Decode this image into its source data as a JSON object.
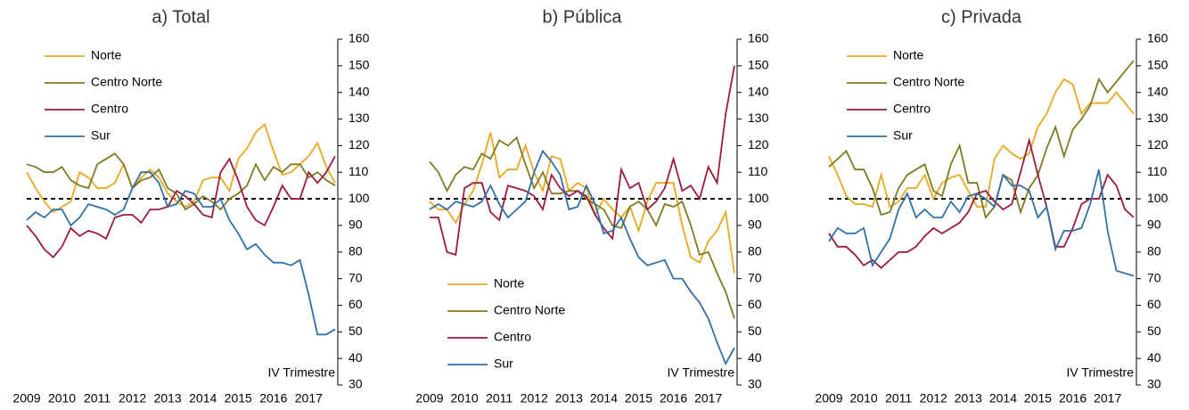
{
  "chart_data": [
    {
      "type": "line",
      "title": "a) Total",
      "categories": [
        "2009",
        null,
        null,
        null,
        "2010",
        null,
        null,
        null,
        "2011",
        null,
        null,
        null,
        "2012",
        null,
        null,
        null,
        "2013",
        null,
        null,
        null,
        "2014",
        null,
        null,
        null,
        "2015",
        null,
        null,
        null,
        "2016",
        null,
        null,
        null,
        "2017",
        null,
        null,
        null
      ],
      "series": [
        {
          "name": "Norte",
          "color": "#e8a820",
          "values": [
            110,
            104,
            99,
            95,
            97,
            99,
            110,
            108,
            104,
            104,
            106,
            113,
            104,
            108,
            111,
            108,
            102,
            99,
            97,
            99,
            107,
            108,
            108,
            103,
            115,
            119,
            125,
            128,
            118,
            109,
            110,
            113,
            116,
            121,
            112,
            106
          ]
        },
        {
          "name": "Centro Norte",
          "color": "#7f7a20",
          "values": [
            113,
            112,
            110,
            110,
            112,
            107,
            105,
            104,
            113,
            115,
            117,
            113,
            104,
            107,
            108,
            111,
            104,
            102,
            96,
            98,
            101,
            99,
            96,
            100,
            102,
            105,
            113,
            107,
            112,
            110,
            113,
            113,
            108,
            110,
            107,
            105
          ]
        },
        {
          "name": "Centro",
          "color": "#9b1b3d",
          "values": [
            90,
            86,
            81,
            78,
            82,
            89,
            86,
            88,
            87,
            85,
            93,
            94,
            94,
            91,
            96,
            96,
            97,
            103,
            101,
            98,
            94,
            93,
            110,
            115,
            107,
            97,
            92,
            90,
            97,
            105,
            100,
            100,
            110,
            106,
            110,
            116
          ]
        },
        {
          "name": "Sur",
          "color": "#3070a8",
          "values": [
            92,
            95,
            93,
            96,
            96,
            90,
            93,
            98,
            97,
            96,
            94,
            96,
            104,
            110,
            110,
            106,
            97,
            98,
            103,
            102,
            97,
            97,
            100,
            92,
            87,
            81,
            83,
            79,
            76,
            76,
            75,
            77,
            64,
            49,
            49,
            51
          ]
        }
      ],
      "ylim": [
        30,
        160
      ],
      "yticks": [
        30,
        40,
        50,
        60,
        70,
        80,
        90,
        100,
        110,
        120,
        130,
        140,
        150,
        160
      ],
      "legend": "upper left",
      "reference_line": 100,
      "annotation": "IV Trimestre"
    },
    {
      "type": "line",
      "title": "b) Pública",
      "categories": [
        "2009",
        null,
        null,
        null,
        "2010",
        null,
        null,
        null,
        "2011",
        null,
        null,
        null,
        "2012",
        null,
        null,
        null,
        "2013",
        null,
        null,
        null,
        "2014",
        null,
        null,
        null,
        "2015",
        null,
        null,
        null,
        "2016",
        null,
        null,
        null,
        "2017",
        null,
        null,
        null
      ],
      "series": [
        {
          "name": "Norte",
          "color": "#e8a820",
          "values": [
            99,
            96,
            96,
            91,
            98,
            103,
            113,
            125,
            108,
            111,
            111,
            120,
            110,
            103,
            116,
            115,
            103,
            106,
            104,
            94,
            100,
            96,
            93,
            97,
            88,
            99,
            106,
            106,
            106,
            90,
            78,
            76,
            84,
            88,
            95,
            72
          ]
        },
        {
          "name": "Centro Norte",
          "color": "#7f7a20",
          "values": [
            114,
            110,
            103,
            109,
            112,
            111,
            117,
            115,
            122,
            120,
            123,
            113,
            104,
            110,
            102,
            102,
            103,
            103,
            100,
            98,
            96,
            90,
            89,
            97,
            99,
            96,
            90,
            98,
            97,
            99,
            90,
            79,
            80,
            72,
            65,
            55
          ]
        },
        {
          "name": "Centro",
          "color": "#9b1b3d",
          "values": [
            93,
            93,
            80,
            79,
            104,
            106,
            106,
            95,
            92,
            105,
            104,
            103,
            101,
            96,
            109,
            104,
            101,
            103,
            101,
            94,
            89,
            85,
            111,
            104,
            106,
            96,
            99,
            104,
            115,
            103,
            105,
            100,
            112,
            106,
            132,
            150
          ]
        },
        {
          "name": "Sur",
          "color": "#3070a8",
          "values": [
            96,
            98,
            96,
            99,
            98,
            97,
            99,
            105,
            98,
            93,
            96,
            99,
            110,
            118,
            114,
            109,
            96,
            97,
            105,
            98,
            87,
            88,
            93,
            85,
            78,
            75,
            76,
            77,
            70,
            70,
            65,
            61,
            55,
            46,
            38,
            44
          ]
        }
      ],
      "ylim": [
        30,
        160
      ],
      "yticks": [
        30,
        40,
        50,
        60,
        70,
        80,
        90,
        100,
        110,
        120,
        130,
        140,
        150,
        160
      ],
      "legend": "lower left",
      "reference_line": 100,
      "annotation": "IV Trimestre"
    },
    {
      "type": "line",
      "title": "c) Privada",
      "categories": [
        "2009",
        null,
        null,
        null,
        "2010",
        null,
        null,
        null,
        "2011",
        null,
        null,
        null,
        "2012",
        null,
        null,
        null,
        "2013",
        null,
        null,
        null,
        "2014",
        null,
        null,
        null,
        "2015",
        null,
        null,
        null,
        "2016",
        null,
        null,
        null,
        "2017",
        null,
        null,
        null
      ],
      "series": [
        {
          "name": "Norte",
          "color": "#e8a820",
          "values": [
            116,
            109,
            101,
            98,
            98,
            97,
            109,
            97,
            99,
            104,
            104,
            109,
            100,
            106,
            108,
            109,
            103,
            97,
            97,
            115,
            120,
            117,
            115,
            117,
            127,
            132,
            140,
            145,
            143,
            132,
            136,
            136,
            136,
            140,
            136,
            132
          ]
        },
        {
          "name": "Centro Norte",
          "color": "#7f7a20",
          "values": [
            112,
            115,
            118,
            111,
            111,
            104,
            94,
            95,
            104,
            109,
            111,
            113,
            103,
            101,
            113,
            120,
            106,
            106,
            93,
            97,
            109,
            107,
            95,
            104,
            109,
            119,
            127,
            116,
            126,
            130,
            135,
            145,
            140,
            144,
            148,
            152
          ]
        },
        {
          "name": "Centro",
          "color": "#9b1b3d",
          "values": [
            87,
            82,
            82,
            79,
            75,
            77,
            74,
            77,
            80,
            80,
            82,
            86,
            89,
            87,
            89,
            91,
            95,
            102,
            103,
            99,
            96,
            98,
            110,
            122,
            109,
            97,
            82,
            82,
            89,
            98,
            100,
            100,
            109,
            105,
            96,
            93
          ]
        },
        {
          "name": "Sur",
          "color": "#3070a8",
          "values": [
            84,
            89,
            87,
            87,
            89,
            75,
            80,
            85,
            96,
            102,
            93,
            96,
            93,
            93,
            99,
            95,
            101,
            102,
            100,
            97,
            109,
            105,
            105,
            103,
            93,
            97,
            81,
            88,
            88,
            89,
            98,
            111,
            88,
            73,
            72,
            71
          ]
        }
      ],
      "ylim": [
        30,
        160
      ],
      "yticks": [
        30,
        40,
        50,
        60,
        70,
        80,
        90,
        100,
        110,
        120,
        130,
        140,
        150,
        160
      ],
      "legend": "upper left",
      "reference_line": 100,
      "annotation": "IV Trimestre"
    }
  ]
}
